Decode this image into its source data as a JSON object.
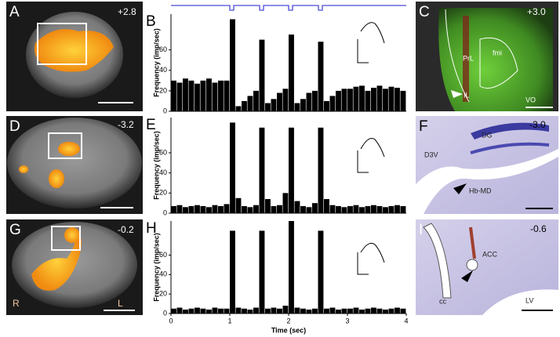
{
  "panels": {
    "A": {
      "letter": "A",
      "coord": "+2.8"
    },
    "D": {
      "letter": "D",
      "coord": "-3.2"
    },
    "G": {
      "letter": "G",
      "coord": "-0.2",
      "right": "R",
      "left": "L"
    },
    "C": {
      "letter": "C",
      "coord": "+3.0",
      "regions": [
        "PrL",
        "fmi",
        "IL",
        "VO"
      ]
    },
    "F": {
      "letter": "F",
      "coord": "-3.0",
      "regions": [
        "DG",
        "D3V",
        "Hb-MD"
      ]
    },
    "I": {
      "letter": "I",
      "coord": "-0.6",
      "regions": [
        "ACC",
        "cc",
        "LV"
      ]
    }
  },
  "chart_data": [
    {
      "type": "histogram",
      "label": "B",
      "y_label": "Frequency (imp/sec)",
      "color": "#000000",
      "bins": [
        0,
        0.1,
        0.2,
        0.3,
        0.4,
        0.5,
        0.6,
        0.7,
        0.8,
        0.9,
        1,
        1.1,
        1.2,
        1.3,
        1.4,
        1.5,
        1.6,
        1.7,
        1.8,
        1.9,
        2,
        2.1,
        2.2,
        2.3,
        2.4,
        2.5,
        2.6,
        2.7,
        2.8,
        2.9,
        3,
        3.1,
        3.2,
        3.3,
        3.4,
        3.5,
        3.6,
        3.7,
        3.8,
        3.9,
        4
      ],
      "values": [
        30,
        28,
        32,
        30,
        27,
        30,
        32,
        28,
        30,
        30,
        90,
        5,
        10,
        15,
        20,
        70,
        8,
        12,
        18,
        22,
        75,
        8,
        12,
        18,
        20,
        68,
        10,
        15,
        20,
        22,
        22,
        24,
        25,
        20,
        23,
        25,
        22,
        24,
        23,
        20
      ],
      "xlim": [
        0,
        4
      ],
      "ylim": [
        0,
        95
      ],
      "yticks": [
        0,
        20,
        40,
        60
      ]
    },
    {
      "type": "histogram",
      "label": "E",
      "y_label": "Frequency (imp/sec)",
      "color": "#000000",
      "bins": [
        0,
        0.1,
        0.2,
        0.3,
        0.4,
        0.5,
        0.6,
        0.7,
        0.8,
        0.9,
        1,
        1.1,
        1.2,
        1.3,
        1.4,
        1.5,
        1.6,
        1.7,
        1.8,
        1.9,
        2,
        2.1,
        2.2,
        2.3,
        2.4,
        2.5,
        2.6,
        2.7,
        2.8,
        2.9,
        3,
        3.1,
        3.2,
        3.3,
        3.4,
        3.5,
        3.6,
        3.7,
        3.8,
        3.9,
        4
      ],
      "values": [
        7,
        8,
        6,
        7,
        8,
        7,
        6,
        8,
        7,
        9,
        90,
        15,
        7,
        6,
        8,
        85,
        14,
        7,
        8,
        20,
        85,
        12,
        7,
        6,
        10,
        85,
        14,
        8,
        7,
        6,
        7,
        8,
        6,
        7,
        8,
        7,
        6,
        7,
        8,
        7
      ],
      "xlim": [
        0,
        4
      ],
      "ylim": [
        0,
        95
      ],
      "yticks": [
        0,
        20,
        40,
        60
      ]
    },
    {
      "type": "histogram",
      "label": "H",
      "y_label": "Frequency (imp/sec)",
      "color": "#000000",
      "bins": [
        0,
        0.1,
        0.2,
        0.3,
        0.4,
        0.5,
        0.6,
        0.7,
        0.8,
        0.9,
        1,
        1.1,
        1.2,
        1.3,
        1.4,
        1.5,
        1.6,
        1.7,
        1.8,
        1.9,
        2,
        2.1,
        2.2,
        2.3,
        2.4,
        2.5,
        2.6,
        2.7,
        2.8,
        2.9,
        3,
        3.1,
        3.2,
        3.3,
        3.4,
        3.5,
        3.6,
        3.7,
        3.8,
        3.9,
        4
      ],
      "values": [
        5,
        6,
        4,
        5,
        6,
        5,
        4,
        6,
        5,
        5,
        85,
        6,
        5,
        4,
        6,
        85,
        5,
        6,
        5,
        8,
        95,
        6,
        5,
        4,
        5,
        85,
        5,
        6,
        4,
        5,
        5,
        6,
        4,
        5,
        6,
        5,
        4,
        5,
        6,
        5
      ],
      "xlim": [
        0,
        4
      ],
      "ylim": [
        0,
        95
      ],
      "yticks": [
        0,
        20,
        40,
        60
      ],
      "xticks": [
        0,
        1,
        2,
        3,
        4
      ],
      "x_label": "Time (sec)"
    }
  ]
}
